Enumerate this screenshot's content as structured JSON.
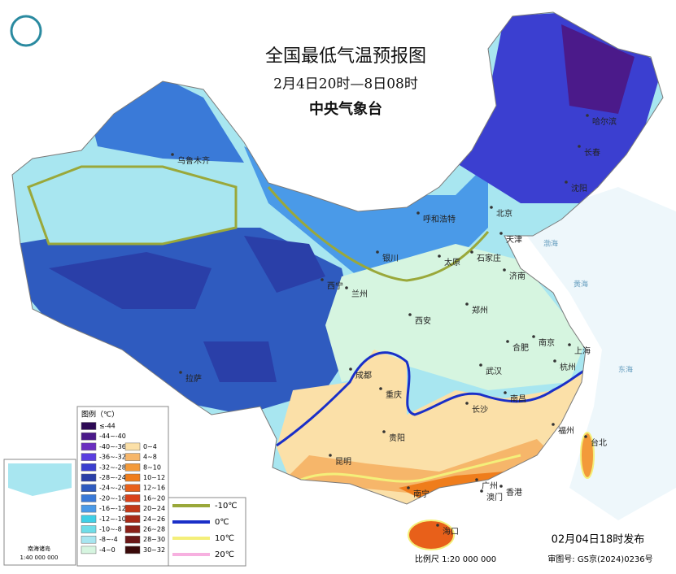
{
  "header": {
    "title": "全国最低气温预报图",
    "subtitle": "2月4日20时—8日08时",
    "agency": "中央气象台"
  },
  "cities": [
    "乌鲁木齐",
    "哈尔滨",
    "长春",
    "沈阳",
    "呼和浩特",
    "北京",
    "天津",
    "银川",
    "太原",
    "石家庄",
    "济南",
    "西宁",
    "兰州",
    "西安",
    "郑州",
    "合肥",
    "南京",
    "上海",
    "杭州",
    "武汉",
    "成都",
    "重庆",
    "拉萨",
    "长沙",
    "南昌",
    "福州",
    "台北",
    "贵阳",
    "昆明",
    "南宁",
    "广州",
    "澳门",
    "香港",
    "海口"
  ],
  "seas": [
    "渤海",
    "黄海",
    "东海"
  ],
  "legend": {
    "title": "图例（℃）",
    "entries": [
      {
        "label": "≤-44",
        "color": "#2d0a55"
      },
      {
        "label": "-44~-40",
        "color": "#4b1a8a"
      },
      {
        "label": "-40~-36",
        "color": "#6a2fc0"
      },
      {
        "label": "-36~-32",
        "color": "#5a3ee0"
      },
      {
        "label": "-32~-28",
        "color": "#3b3fd0"
      },
      {
        "label": "-28~-24",
        "color": "#2a3fa8"
      },
      {
        "label": "-24~-20",
        "color": "#2f5bbf"
      },
      {
        "label": "-20~-16",
        "color": "#3a7ad8"
      },
      {
        "label": "-16~-12",
        "color": "#4a9ae8"
      },
      {
        "label": "-12~-10",
        "color": "#3fcfe6"
      },
      {
        "label": "-10~-8",
        "color": "#6fdde8"
      },
      {
        "label": "-8~-4",
        "color": "#a8e6f0"
      },
      {
        "label": "-4~0",
        "color": "#d6f5e0"
      },
      {
        "label": "0~4",
        "color": "#fbe0a8"
      },
      {
        "label": "4~8",
        "color": "#f6b66a"
      },
      {
        "label": "8~10",
        "color": "#f39a3a"
      },
      {
        "label": "10~12",
        "color": "#ef7d1c"
      },
      {
        "label": "12~16",
        "color": "#e8601a"
      },
      {
        "label": "16~20",
        "color": "#d9421a"
      },
      {
        "label": "20~24",
        "color": "#c23818"
      },
      {
        "label": "24~26",
        "color": "#a82a18"
      },
      {
        "label": "26~28",
        "color": "#8a2018"
      },
      {
        "label": "28~30",
        "color": "#6a1818"
      },
      {
        "label": "30~32",
        "color": "#3a0a0a"
      }
    ],
    "isotherms": [
      {
        "label": "-10℃",
        "color": "#9aa83a"
      },
      {
        "label": "0℃",
        "color": "#1a2fc8"
      },
      {
        "label": "10℃",
        "color": "#f4ef7a"
      },
      {
        "label": "20℃",
        "color": "#f7b0e0"
      }
    ]
  },
  "inset": {
    "label": "南海诸岛",
    "scale": "1:40 000 000"
  },
  "footer": {
    "issued": "02月04日18时发布",
    "scale": "比例尺 1:20 000 000",
    "approval": "审图号: GS京(2024)0236号"
  }
}
